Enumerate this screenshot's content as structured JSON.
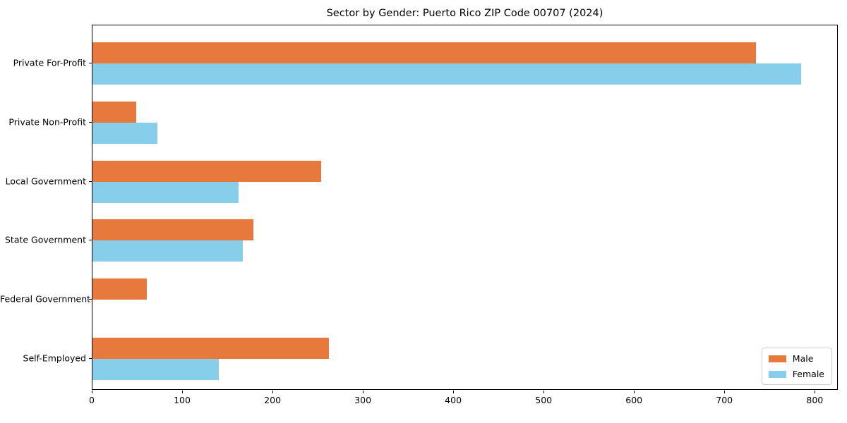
{
  "figure": {
    "background": "#ffffff"
  },
  "chart_data": {
    "type": "bar",
    "orientation": "horizontal",
    "title": "Sector by Gender: Puerto Rico ZIP Code 00707 (2024)",
    "categories": [
      "Private For-Profit",
      "Private Non-Profit",
      "Local Government",
      "State Government",
      "Federal Government",
      "Self-Employed"
    ],
    "series": [
      {
        "name": "Male",
        "color": "#E8793C",
        "values": [
          734,
          48,
          253,
          178,
          60,
          262
        ]
      },
      {
        "name": "Female",
        "color": "#87CEEB",
        "values": [
          784,
          72,
          162,
          166,
          0,
          140
        ]
      }
    ],
    "xlabel": "",
    "ylabel": "",
    "xlim": [
      0,
      824
    ],
    "xticks": [
      0,
      100,
      200,
      300,
      400,
      500,
      600,
      700,
      800
    ],
    "grid": false,
    "legend": {
      "position": "lower right",
      "entries": [
        "Male",
        "Female"
      ]
    }
  }
}
